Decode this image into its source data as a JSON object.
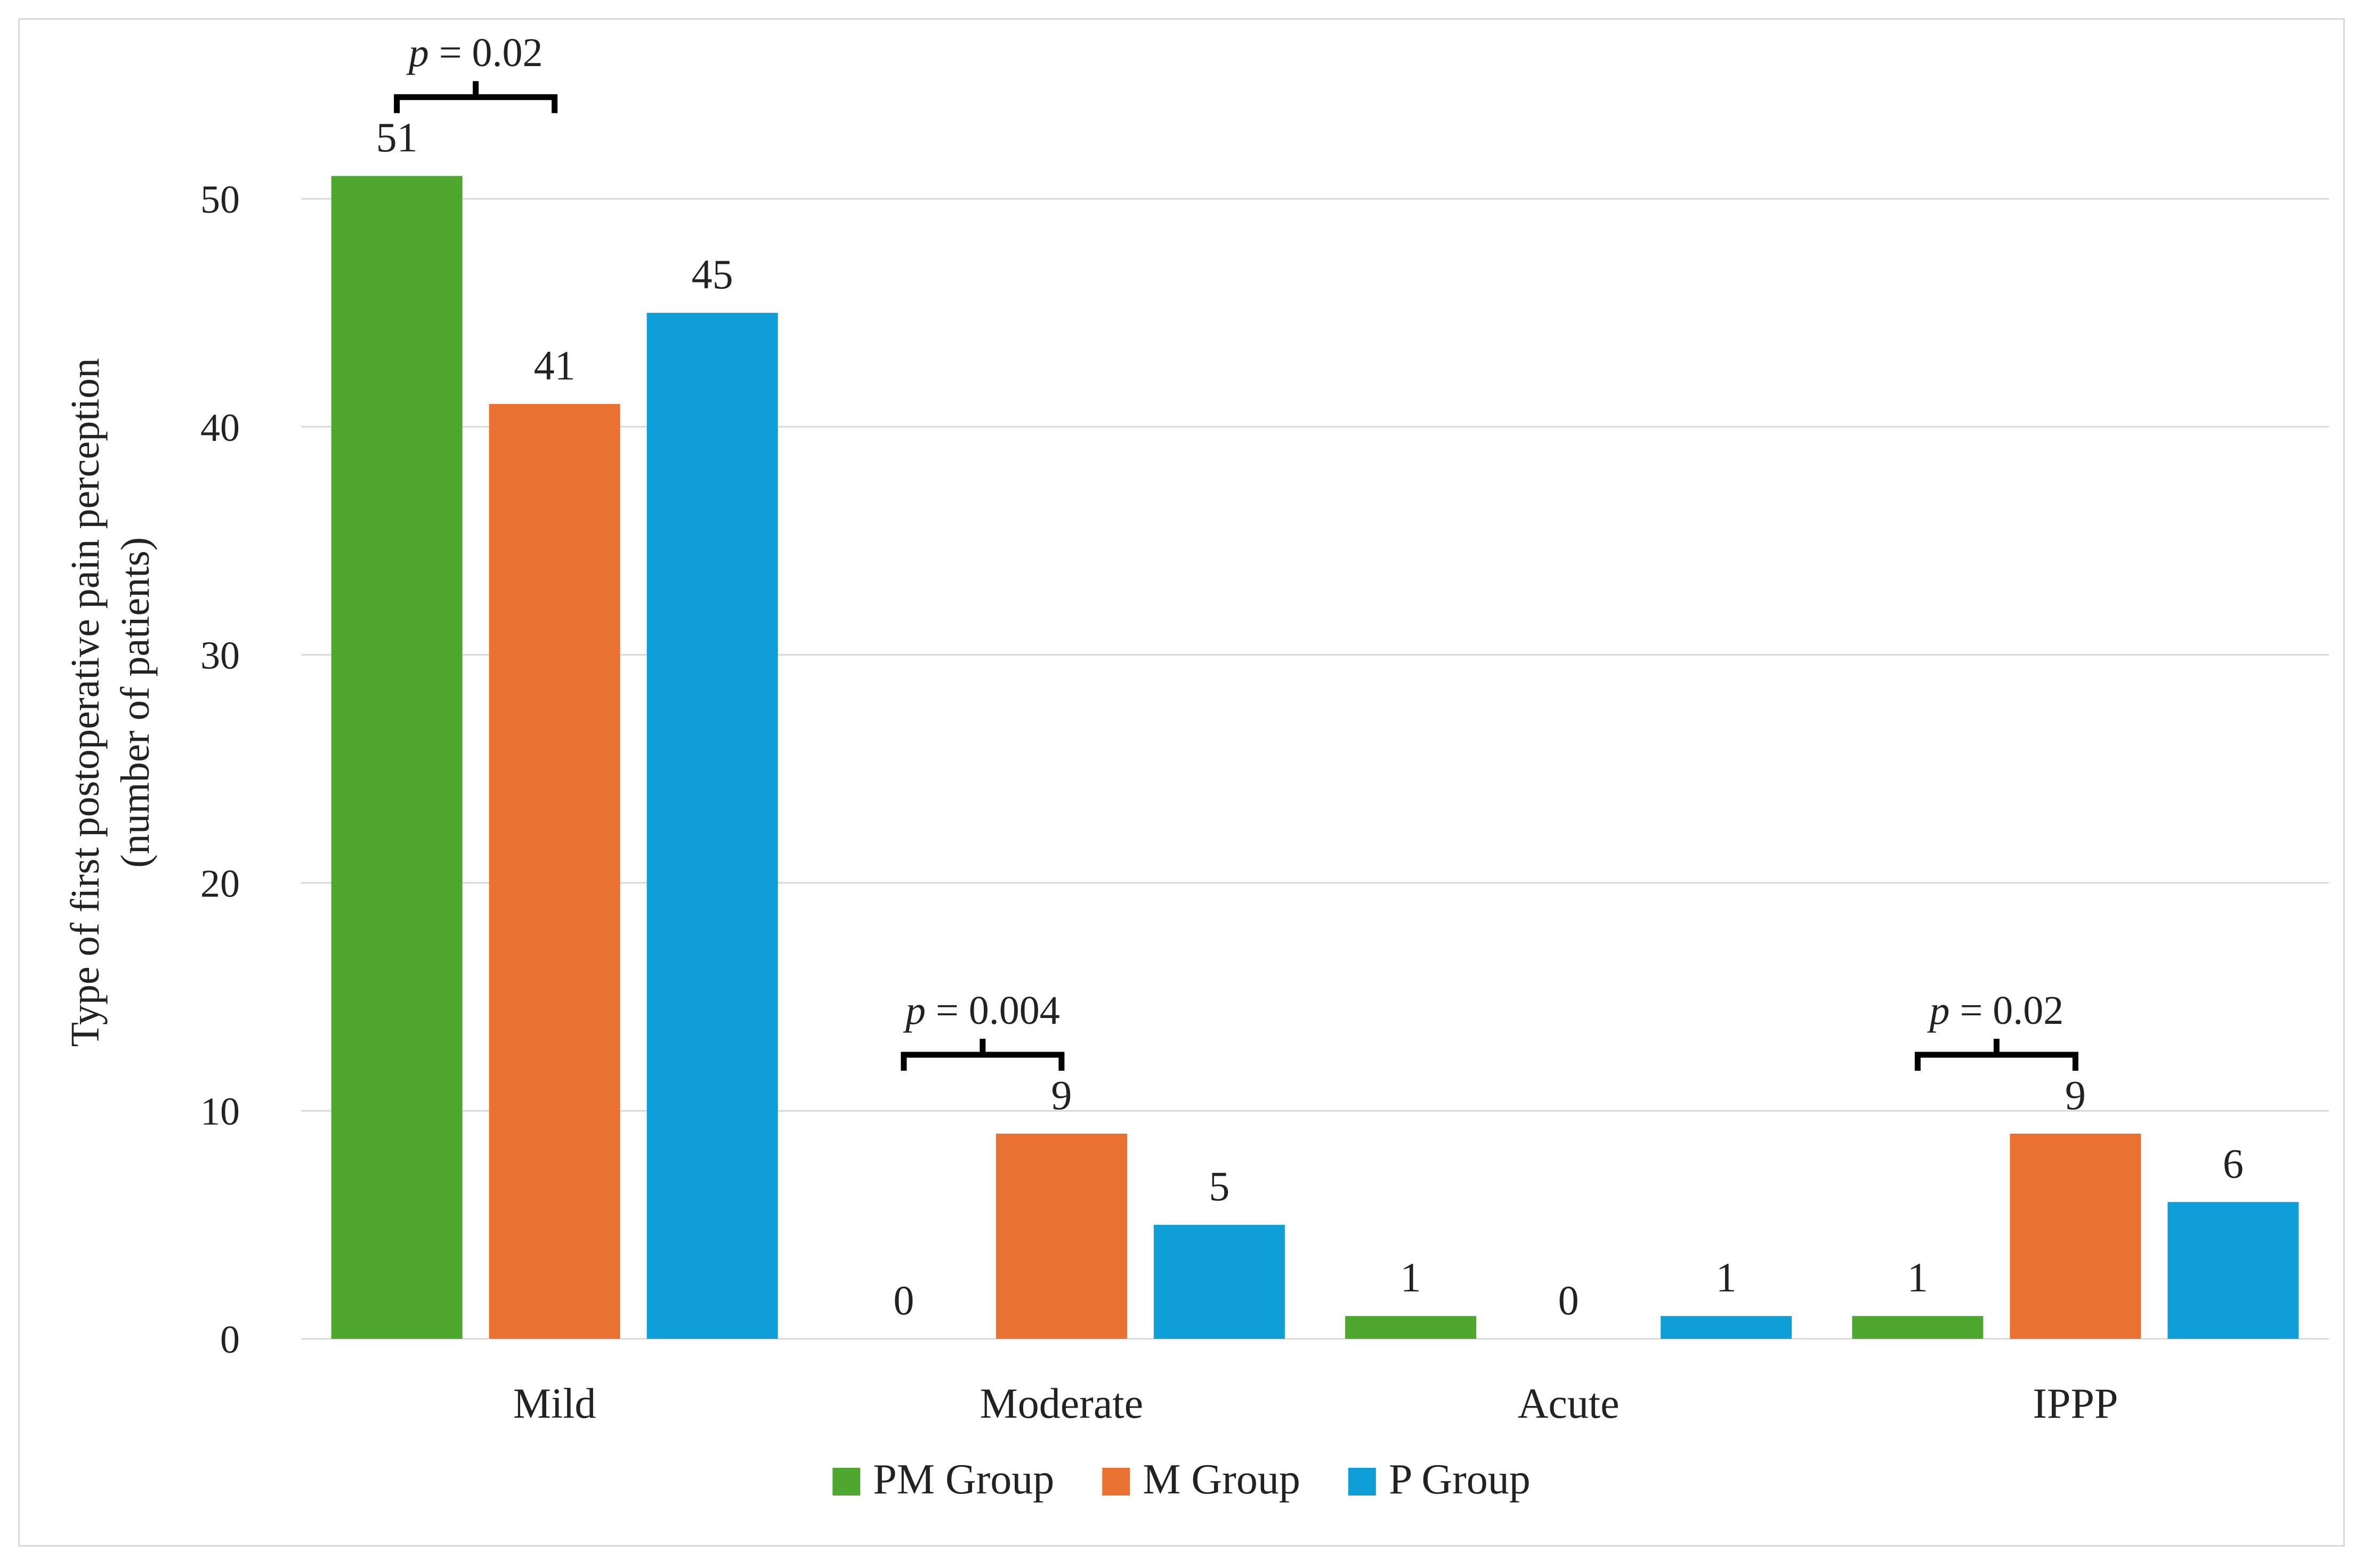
{
  "chart_data": {
    "type": "bar",
    "categories": [
      "Mild",
      "Moderate",
      "Acute",
      "IPPP"
    ],
    "series": [
      {
        "name": "PM Group",
        "color": "#4ea72e",
        "values": [
          51,
          0,
          1,
          1
        ]
      },
      {
        "name": "M Group",
        "color": "#e97132",
        "values": [
          41,
          9,
          0,
          9
        ]
      },
      {
        "name": "P Group",
        "color": "#0f9ed5",
        "values": [
          45,
          5,
          1,
          6
        ]
      }
    ],
    "ylabel_lines": [
      "Type of first postoperative pain perception",
      "(number of patients)"
    ],
    "xlabel": "",
    "ylim": [
      0,
      50
    ],
    "yticks": [
      0,
      10,
      20,
      30,
      40,
      50
    ],
    "grid": true,
    "legend_position": "bottom",
    "annotations": [
      {
        "category": "Mild",
        "series_from": "PM Group",
        "series_to": "M Group",
        "p_symbol": "p",
        "p_value": " = 0.02"
      },
      {
        "category": "Moderate",
        "series_from": "PM Group",
        "series_to": "M Group",
        "p_symbol": "p",
        "p_value": " = 0.004"
      },
      {
        "category": "IPPP",
        "series_from": "PM Group",
        "series_to": "M Group",
        "p_symbol": "p",
        "p_value": " = 0.02"
      }
    ]
  }
}
